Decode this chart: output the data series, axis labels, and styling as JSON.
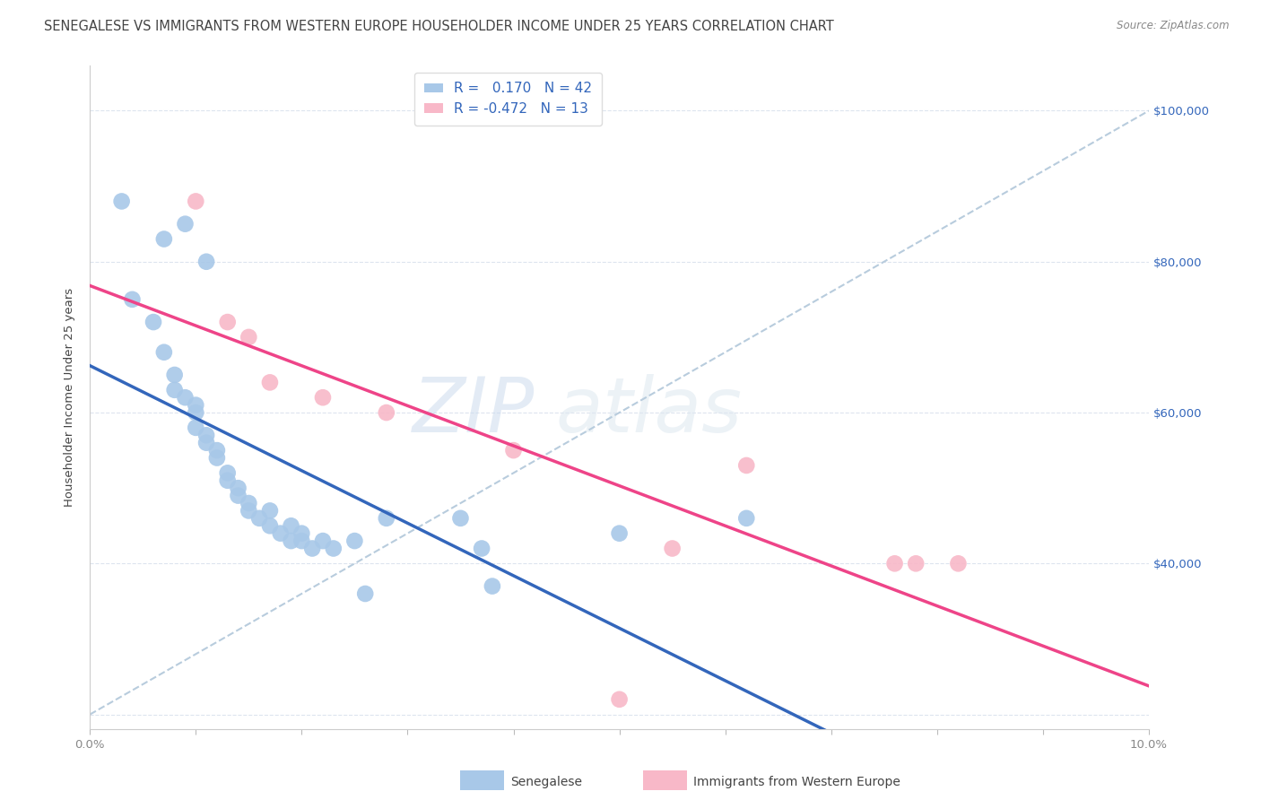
{
  "title": "SENEGALESE VS IMMIGRANTS FROM WESTERN EUROPE HOUSEHOLDER INCOME UNDER 25 YEARS CORRELATION CHART",
  "source": "Source: ZipAtlas.com",
  "ylabel": "Householder Income Under 25 years",
  "xlim": [
    0.0,
    0.1
  ],
  "ylim": [
    18000,
    106000
  ],
  "watermark_zip": "ZIP",
  "watermark_atlas": "atlas",
  "blue_R": 0.17,
  "blue_N": 42,
  "pink_R": -0.472,
  "pink_N": 13,
  "blue_color": "#a8c8e8",
  "pink_color": "#f8b8c8",
  "blue_line_color": "#3366bb",
  "pink_line_color": "#ee4488",
  "dashed_line_color": "#b8ccdd",
  "background_color": "#ffffff",
  "grid_color": "#dde4ee",
  "title_color": "#444444",
  "source_color": "#888888",
  "ylabel_color": "#444444",
  "tick_color": "#888888",
  "right_tick_color": "#3366bb",
  "blue_scatter_x": [
    0.003,
    0.007,
    0.009,
    0.011,
    0.004,
    0.006,
    0.007,
    0.008,
    0.008,
    0.009,
    0.01,
    0.01,
    0.01,
    0.011,
    0.011,
    0.012,
    0.012,
    0.013,
    0.013,
    0.014,
    0.014,
    0.015,
    0.015,
    0.016,
    0.017,
    0.017,
    0.018,
    0.019,
    0.019,
    0.02,
    0.02,
    0.021,
    0.022,
    0.023,
    0.025,
    0.026,
    0.028,
    0.035,
    0.037,
    0.038,
    0.062,
    0.05
  ],
  "blue_scatter_y": [
    88000,
    83000,
    85000,
    80000,
    75000,
    72000,
    68000,
    65000,
    63000,
    62000,
    61000,
    60000,
    58000,
    57000,
    56000,
    55000,
    54000,
    52000,
    51000,
    50000,
    49000,
    48000,
    47000,
    46000,
    47000,
    45000,
    44000,
    45000,
    43000,
    43000,
    44000,
    42000,
    43000,
    42000,
    43000,
    36000,
    46000,
    46000,
    42000,
    37000,
    46000,
    44000
  ],
  "pink_scatter_x": [
    0.01,
    0.013,
    0.015,
    0.017,
    0.022,
    0.028,
    0.04,
    0.055,
    0.062,
    0.076,
    0.078,
    0.082,
    0.05
  ],
  "pink_scatter_y": [
    88000,
    72000,
    70000,
    64000,
    62000,
    60000,
    55000,
    42000,
    53000,
    40000,
    40000,
    40000,
    22000
  ],
  "title_fontsize": 10.5,
  "axis_label_fontsize": 9.5,
  "tick_fontsize": 9.5,
  "legend_fontsize": 11
}
